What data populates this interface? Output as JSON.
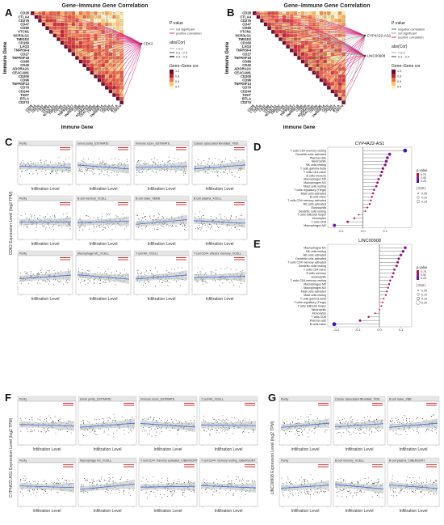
{
  "panels": {
    "A": {
      "label": "A",
      "title": "Gene–Immune Gene Correlation",
      "x_title": "Immune Gene",
      "y_title": "Immune Gene",
      "immune_genes": [
        "CD28",
        "CTLA4",
        "CD276",
        "CD47",
        "CD80",
        "VTCN1",
        "NCR3LG1",
        "TMIGD2",
        "CD160",
        "LAG3",
        "TNFRSF4",
        "CD27",
        "TNFRSF18",
        "CD86",
        "CD40",
        "ADORA2A",
        "CEACAM1",
        "CD200",
        "CD96",
        "TNFRSF14",
        "CD70",
        "CD244",
        "TIGIT",
        "BTLA",
        "CD274"
      ],
      "target_gene": "CDK2",
      "legend": {
        "pvalue_title": "P-value",
        "pvalue_items": [
          "not significant",
          "positive correlation"
        ],
        "abs_title": "abs(Cor)",
        "abs_items": [
          "< 0.2",
          "0.2 - 0.4",
          "0.4 - 0.6"
        ],
        "gg_title": "Gene–Gene cor",
        "gg_ticks": [
          "1.0",
          "0.8",
          "0.6",
          "0.4"
        ]
      }
    },
    "B": {
      "label": "B",
      "title": "Gene–Immune Gene Correlation",
      "x_title": "Immune Gene",
      "y_title": "Immune Gene",
      "target_genes": [
        "CYP4A22-AS1",
        "LINC00908"
      ],
      "legend": {
        "pvalue_title": "P-value",
        "pvalue_items": [
          "negative correlation",
          "not significant",
          "positive correlation"
        ],
        "abs_title": "abs(Cor)",
        "abs_items": [
          "< 0.2",
          "0.2 - 0.4"
        ],
        "gg_title": "Gene–Gene cor",
        "gg_ticks": [
          "1.0",
          "0.8",
          "0.6",
          "0.4"
        ]
      }
    },
    "C": {
      "label": "C",
      "y_title": "CDK2 Expression Level (log2 TPM)",
      "x_title": "Infiltration Level",
      "rows": [
        [
          "Purity",
          "tumor purity_ESTIMATE",
          "immune score_ESTIMATE",
          "Cancer associated fibroblast_TIDE"
        ],
        [
          "Purity",
          "B cell memory_XCELL",
          "B cell naive_XEBB",
          "B cell plasma_XCELL"
        ],
        [
          "Purity",
          "Macrophage M1_XCELL",
          "T cell NK_XCELL",
          "T cell CD4+ effector memory_XCELL"
        ]
      ]
    },
    "D": {
      "label": "D",
      "title": "CYP4A22-AS1",
      "cells": [
        "T cells CD4 memory resting",
        "Dendritic cells activated",
        "Plasma cells",
        "Neutrophils",
        "NK cells resting",
        "T cells gamma delta",
        "T cells CD4 naive",
        "B cells memory",
        "Macrophages M0",
        "Macrophages M1",
        "Mast cells resting",
        "T cells regulatory (Tregs)",
        "Mast cells activated",
        "B cells naive",
        "T cells CD4 memory activated",
        "NK cells activated",
        "Eosinophils",
        "Dendritic cells resting",
        "T cells follicular helper",
        "Monocytes",
        "T cells CD8",
        "Macrophages M2"
      ],
      "values": [
        0.19,
        0.12,
        0.11,
        0.105,
        0.1,
        0.09,
        0.085,
        0.08,
        0.07,
        0.065,
        0.06,
        0.05,
        0.045,
        0.04,
        0.035,
        0.03,
        0.02,
        0.01,
        -0.02,
        -0.04,
        -0.07,
        -0.13
      ],
      "x_ticks": [
        "-0.1",
        "0.0",
        "0.1"
      ],
      "legend": {
        "pv_title": "p.value",
        "pv_ticks": [
          "0.75",
          "0.50",
          "0.25"
        ],
        "cor_title": "| Cor |",
        "cor_ticks": [
          "0.05",
          "0.10",
          "0.15"
        ]
      }
    },
    "E": {
      "label": "E",
      "title": "LINC00908",
      "cells": [
        "Macrophages M1",
        "NK cells resting",
        "NK cells activated",
        "Dendritic cells activated",
        "T cells CD4 memory activated",
        "Dendritic cells resting",
        "T cells CD4 naive",
        "B cells memory",
        "Eosinophils",
        "T cells CD4 memory resting",
        "Macrophages M0",
        "Macrophages M2",
        "Mast cells activated",
        "Mast cells resting",
        "T cells gamma delta",
        "T cells regulatory (Tregs)",
        "T cells follicular helper",
        "Neutrophils",
        "Monocytes",
        "T cells CD8",
        "Plasma cells",
        "B cells naive"
      ],
      "values": [
        0.12,
        0.11,
        0.1,
        0.09,
        0.085,
        0.08,
        0.07,
        0.065,
        0.06,
        0.05,
        0.045,
        0.04,
        0.035,
        0.03,
        0.02,
        0.015,
        0.01,
        0.0,
        -0.02,
        -0.05,
        -0.09,
        -0.21
      ],
      "x_ticks": [
        "-0.2",
        "-0.1",
        "0.0",
        "0.1"
      ],
      "legend": {
        "pv_title": "p.value",
        "pv_ticks": [
          "0.75",
          "0.50",
          "0.25"
        ],
        "cor_title": "| Cor |",
        "cor_ticks": [
          "0.05",
          "0.10",
          "0.15",
          "0.20"
        ]
      }
    },
    "F": {
      "label": "F",
      "y_title": "CYP4A22-AS1 Expression Level (log2 TPM)",
      "x_title": "Infiltration Level",
      "rows": [
        [
          "Purity",
          "tumor purity_ESTIMATE",
          "immune score_ESTIMATE",
          "T cell NK_XCELL"
        ],
        [
          "Purity",
          "Macrophage M1_XCELL",
          "T cell CD4+ memory activated_CIBERSORT",
          "T cell CD4+ memory resting_CIBERSORT"
        ]
      ]
    },
    "G": {
      "label": "G",
      "y_title": "LINC00908 Expression Level (log2 TPM)",
      "x_title": "Infiltration Level",
      "rows": [
        [
          "Purity",
          "Cancer associated fibroblast_TIDE",
          "B cell naive_XBB"
        ],
        [
          "Purity",
          "B cell memory_XCELL",
          "B cell plasma_CIBERSORT"
        ]
      ]
    }
  }
}
